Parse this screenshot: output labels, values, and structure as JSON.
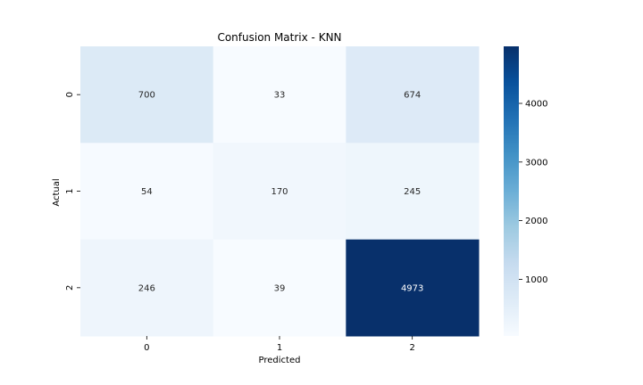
{
  "chart_data": {
    "type": "heatmap",
    "title": "Confusion Matrix - KNN",
    "xlabel": "Predicted",
    "ylabel": "Actual",
    "x_categories": [
      "0",
      "1",
      "2"
    ],
    "y_categories": [
      "0",
      "1",
      "2"
    ],
    "values": [
      [
        700,
        33,
        674
      ],
      [
        54,
        170,
        245
      ],
      [
        246,
        39,
        4973
      ]
    ],
    "colormap": "Blues",
    "color_range": [
      33,
      4973
    ],
    "colorbar_ticks": [
      1000,
      2000,
      3000,
      4000
    ],
    "colorbar_tick_labels": [
      "1000",
      "2000",
      "3000",
      "4000"
    ],
    "colors": {
      "low": "#f7fbff",
      "high": "#08306b",
      "text_dark": "#262626",
      "text_light": "#ffffff"
    }
  }
}
